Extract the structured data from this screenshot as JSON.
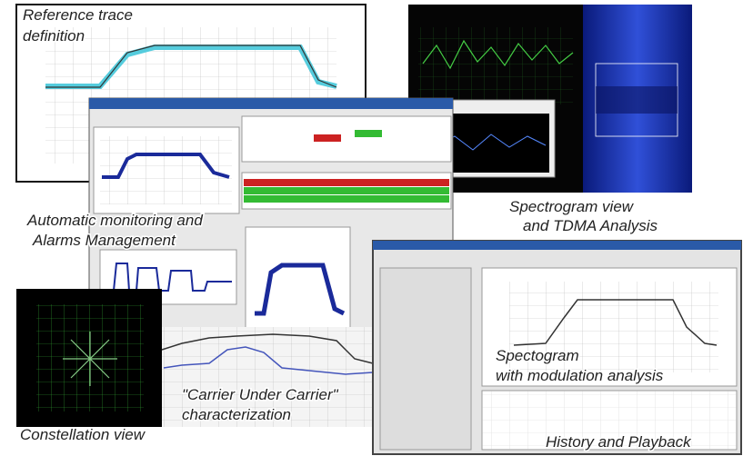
{
  "labels": [
    {
      "lines": [
        "Reference trace",
        "definition"
      ]
    },
    {
      "lines": [
        "Automatic monitoring and",
        "Alarms Management"
      ]
    },
    {
      "lines": [
        "Spectrogram view",
        "and TDMA Analysis"
      ]
    },
    {
      "lines": [
        "Spectogram",
        "with modulation analysis"
      ]
    },
    {
      "lines": [
        "Constellation view"
      ]
    },
    {
      "lines": [
        "\"Carrier Under Carrier\"",
        "characterization"
      ]
    },
    {
      "lines": [
        "History and Playback"
      ]
    }
  ]
}
